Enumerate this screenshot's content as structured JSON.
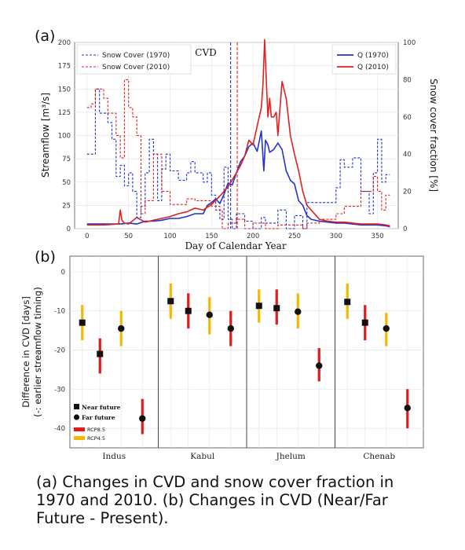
{
  "panel_a_label": "(a)",
  "panel_b_label": "(b)",
  "caption_lines": [
    "(a) Changes in CVD and snow cover fraction in",
    "1970 and 2010. (b) Changes in CVD (Near/Far",
    "Future - Present)."
  ],
  "colors": {
    "blue": "#2233cc",
    "red": "#e02020",
    "rcp85": "#e01b1b",
    "rcp45": "#f5b800"
  },
  "chart_data": [
    {
      "type": "line",
      "title": "",
      "annotation": "CVD",
      "xlabel": "Day of Calendar Year",
      "ylabel": "Streamflow [m³/s]",
      "ylabel_right": "Snow cover fraction [%]",
      "xlim": [
        -15,
        375
      ],
      "ylim": [
        0,
        200
      ],
      "ylim_right": [
        0,
        100
      ],
      "xticks": [
        0,
        50,
        100,
        150,
        200,
        250,
        300,
        350
      ],
      "yticks": [
        0,
        25,
        50,
        75,
        100,
        125,
        150,
        175,
        200
      ],
      "yticks_right": [
        0,
        20,
        40,
        60,
        80,
        100
      ],
      "legend_left": [
        "Snow Cover (1970)",
        "Snow Cover (2010)"
      ],
      "legend_right": [
        "Q (1970)",
        "Q (2010)"
      ],
      "cvd_lines": [
        {
          "series": "1970",
          "day": 173
        },
        {
          "series": "2010",
          "day": 181
        }
      ],
      "series": [
        {
          "name": "Q (1970)",
          "axis": "left",
          "style": "solid",
          "color": "#2233cc",
          "x": [
            0,
            20,
            40,
            50,
            60,
            70,
            80,
            90,
            100,
            110,
            120,
            130,
            140,
            145,
            150,
            155,
            160,
            165,
            170,
            175,
            180,
            185,
            190,
            195,
            200,
            205,
            210,
            213,
            215,
            218,
            220,
            225,
            230,
            235,
            240,
            245,
            250,
            255,
            260,
            265,
            270,
            280,
            290,
            300,
            310,
            320,
            330,
            340,
            350,
            360,
            365
          ],
          "y": [
            5,
            5,
            5,
            6,
            5,
            8,
            8,
            9,
            11,
            11,
            13,
            16,
            16,
            25,
            28,
            32,
            27,
            37,
            49,
            47,
            60,
            72,
            78,
            88,
            92,
            83,
            105,
            62,
            95,
            90,
            82,
            85,
            92,
            85,
            62,
            52,
            48,
            30,
            25,
            14,
            10,
            8,
            7,
            6,
            6,
            5,
            4,
            4,
            4,
            3,
            2
          ]
        },
        {
          "name": "Q (2010)",
          "axis": "left",
          "style": "solid",
          "color": "#e02020",
          "x": [
            0,
            20,
            38,
            40,
            42,
            45,
            50,
            60,
            70,
            80,
            90,
            100,
            110,
            120,
            130,
            140,
            150,
            160,
            170,
            180,
            185,
            190,
            195,
            200,
            205,
            210,
            212,
            214,
            216,
            218,
            220,
            222,
            225,
            228,
            230,
            235,
            240,
            245,
            250,
            255,
            260,
            265,
            270,
            280,
            290,
            300,
            310,
            320,
            330,
            340,
            350,
            360,
            365
          ],
          "y": [
            4,
            4,
            5,
            20,
            9,
            6,
            5,
            12,
            7,
            9,
            11,
            13,
            16,
            18,
            22,
            20,
            26,
            35,
            45,
            60,
            68,
            78,
            95,
            90,
            110,
            130,
            155,
            203,
            160,
            120,
            140,
            120,
            120,
            125,
            100,
            158,
            140,
            100,
            80,
            62,
            40,
            25,
            20,
            10,
            8,
            7,
            7,
            6,
            5,
            5,
            5,
            4,
            3
          ]
        },
        {
          "name": "Snow Cover (1970)",
          "axis": "right",
          "style": "dashed",
          "color": "#2233cc",
          "x": [
            0,
            10,
            10,
            15,
            15,
            25,
            25,
            30,
            30,
            35,
            35,
            40,
            40,
            45,
            45,
            50,
            50,
            55,
            55,
            60,
            60,
            65,
            65,
            70,
            70,
            75,
            75,
            80,
            80,
            85,
            85,
            90,
            90,
            95,
            95,
            100,
            100,
            110,
            110,
            120,
            120,
            125,
            125,
            130,
            130,
            140,
            140,
            145,
            145,
            150,
            150,
            155,
            155,
            160,
            160,
            165,
            165,
            170,
            170,
            175,
            175,
            180,
            180,
            190,
            190,
            200,
            200,
            210,
            210,
            215,
            215,
            230,
            230,
            240,
            240,
            250,
            250,
            260,
            260,
            265,
            265,
            300,
            300,
            305,
            305,
            310,
            310,
            320,
            320,
            330,
            330,
            340,
            340,
            345,
            345,
            350,
            350,
            355,
            355,
            360,
            360,
            365
          ],
          "y": [
            40,
            40,
            75,
            75,
            62,
            62,
            57,
            57,
            48,
            48,
            28,
            28,
            34,
            34,
            23,
            23,
            30,
            30,
            20,
            20,
            6,
            6,
            12,
            12,
            30,
            30,
            48,
            48,
            40,
            40,
            15,
            15,
            32,
            32,
            40,
            40,
            31,
            31,
            26,
            26,
            30,
            30,
            36,
            36,
            30,
            30,
            25,
            25,
            30,
            30,
            18,
            18,
            10,
            10,
            5,
            5,
            33,
            33,
            5,
            5,
            0,
            0,
            8,
            8,
            4,
            4,
            0,
            0,
            6,
            6,
            3,
            3,
            10,
            10,
            0,
            0,
            7,
            7,
            0,
            0,
            14,
            14,
            22,
            22,
            37,
            37,
            33,
            33,
            38,
            38,
            20,
            20,
            8,
            8,
            30,
            30,
            48,
            48,
            25,
            25,
            29,
            29
          ]
        },
        {
          "name": "Snow Cover (2010)",
          "axis": "right",
          "style": "dashed",
          "color": "#e02020",
          "x": [
            0,
            5,
            5,
            10,
            10,
            20,
            20,
            25,
            25,
            35,
            35,
            40,
            40,
            45,
            45,
            50,
            50,
            55,
            55,
            60,
            60,
            65,
            65,
            70,
            70,
            80,
            80,
            90,
            90,
            100,
            100,
            120,
            120,
            130,
            130,
            150,
            150,
            160,
            160,
            163,
            163,
            170,
            170,
            180,
            180,
            190,
            190,
            200,
            200,
            215,
            215,
            230,
            230,
            260,
            260,
            265,
            265,
            280,
            280,
            300,
            300,
            310,
            310,
            330,
            330,
            345,
            345,
            350,
            350,
            355,
            355,
            360,
            360,
            365
          ],
          "y": [
            65,
            65,
            67,
            67,
            75,
            75,
            70,
            70,
            62,
            62,
            50,
            50,
            38,
            38,
            80,
            80,
            65,
            65,
            60,
            60,
            50,
            50,
            8,
            8,
            15,
            15,
            40,
            40,
            20,
            20,
            13,
            13,
            16,
            16,
            15,
            15,
            12,
            12,
            10,
            10,
            0,
            0,
            3,
            3,
            5,
            5,
            0,
            0,
            3,
            3,
            0,
            0,
            2,
            2,
            0,
            0,
            3,
            3,
            5,
            5,
            8,
            8,
            12,
            12,
            20,
            20,
            28,
            28,
            20,
            20,
            10,
            10,
            18,
            18
          ]
        }
      ]
    },
    {
      "type": "scatter",
      "title": "",
      "xlabel": "",
      "ylabel": "Difference in CVD [days]",
      "ylabel_sub": "(-: earlier streamflow timing)",
      "ylim": [
        -45,
        4
      ],
      "yticks": [
        0,
        -10,
        -20,
        -30,
        -40
      ],
      "categories": [
        "Indus",
        "Kabul",
        "Jhelum",
        "Chenab"
      ],
      "legend": {
        "markers": [
          "Near future",
          "Far future"
        ],
        "scenarios": [
          "RCP8.5",
          "RCP4.5"
        ]
      },
      "series": [
        {
          "name": "Near future",
          "scenario": "RCP4.5",
          "marker": "square",
          "values": [
            -13,
            -7.5,
            -8.7,
            -7.7
          ],
          "err_low": [
            -17.5,
            -12,
            -13,
            -12
          ],
          "err_high": [
            -8.5,
            -3,
            -4.5,
            -3
          ]
        },
        {
          "name": "Near future",
          "scenario": "RCP8.5",
          "marker": "square",
          "values": [
            -21,
            -10,
            -9.3,
            -13
          ],
          "err_low": [
            -26,
            -14.5,
            -13.5,
            -17.5
          ],
          "err_high": [
            -17,
            -5.5,
            -4.5,
            -8.5
          ]
        },
        {
          "name": "Far future",
          "scenario": "RCP4.5",
          "marker": "circle",
          "values": [
            -14.5,
            -11,
            -10.2,
            -14.5
          ],
          "err_low": [
            -19,
            -16,
            -14.5,
            -19
          ],
          "err_high": [
            -10,
            -6.5,
            -5.5,
            -10.5
          ]
        },
        {
          "name": "Far future",
          "scenario": "RCP8.5",
          "marker": "circle",
          "values": [
            -37.5,
            -14.5,
            -24,
            -34.8
          ],
          "err_low": [
            -41.5,
            -19,
            -28,
            -40
          ],
          "err_high": [
            -32.5,
            -10,
            -19.5,
            -30
          ]
        }
      ]
    }
  ]
}
